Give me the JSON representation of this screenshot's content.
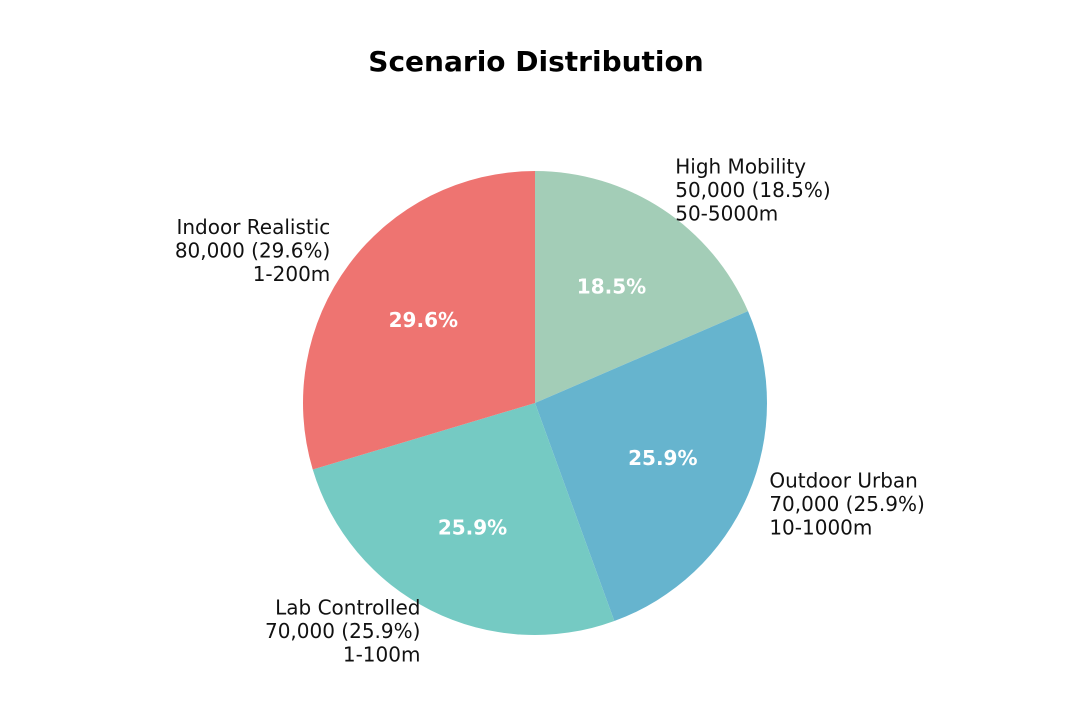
{
  "chart_data": {
    "type": "pie",
    "title": "Scenario Distribution",
    "start_angle_deg": 90,
    "direction": "clockwise",
    "slices": [
      {
        "name": "High Mobility",
        "value": 50000,
        "value_text": "50,000 (18.5%)",
        "percent": 18.5,
        "pct_text": "18.5%",
        "range": "50-5000m",
        "color": "#a3cdb7"
      },
      {
        "name": "Outdoor Urban",
        "value": 70000,
        "value_text": "70,000 (25.9%)",
        "percent": 25.9,
        "pct_text": "25.9%",
        "range": "10-1000m",
        "color": "#66b4ce"
      },
      {
        "name": "Lab Controlled",
        "value": 70000,
        "value_text": "70,000 (25.9%)",
        "percent": 25.9,
        "pct_text": "25.9%",
        "range": "1-100m",
        "color": "#75cac3"
      },
      {
        "name": "Indoor Realistic",
        "value": 80000,
        "value_text": "80,000 (29.6%)",
        "percent": 29.6,
        "pct_text": "29.6%",
        "range": "1-200m",
        "color": "#ee7471"
      }
    ]
  }
}
